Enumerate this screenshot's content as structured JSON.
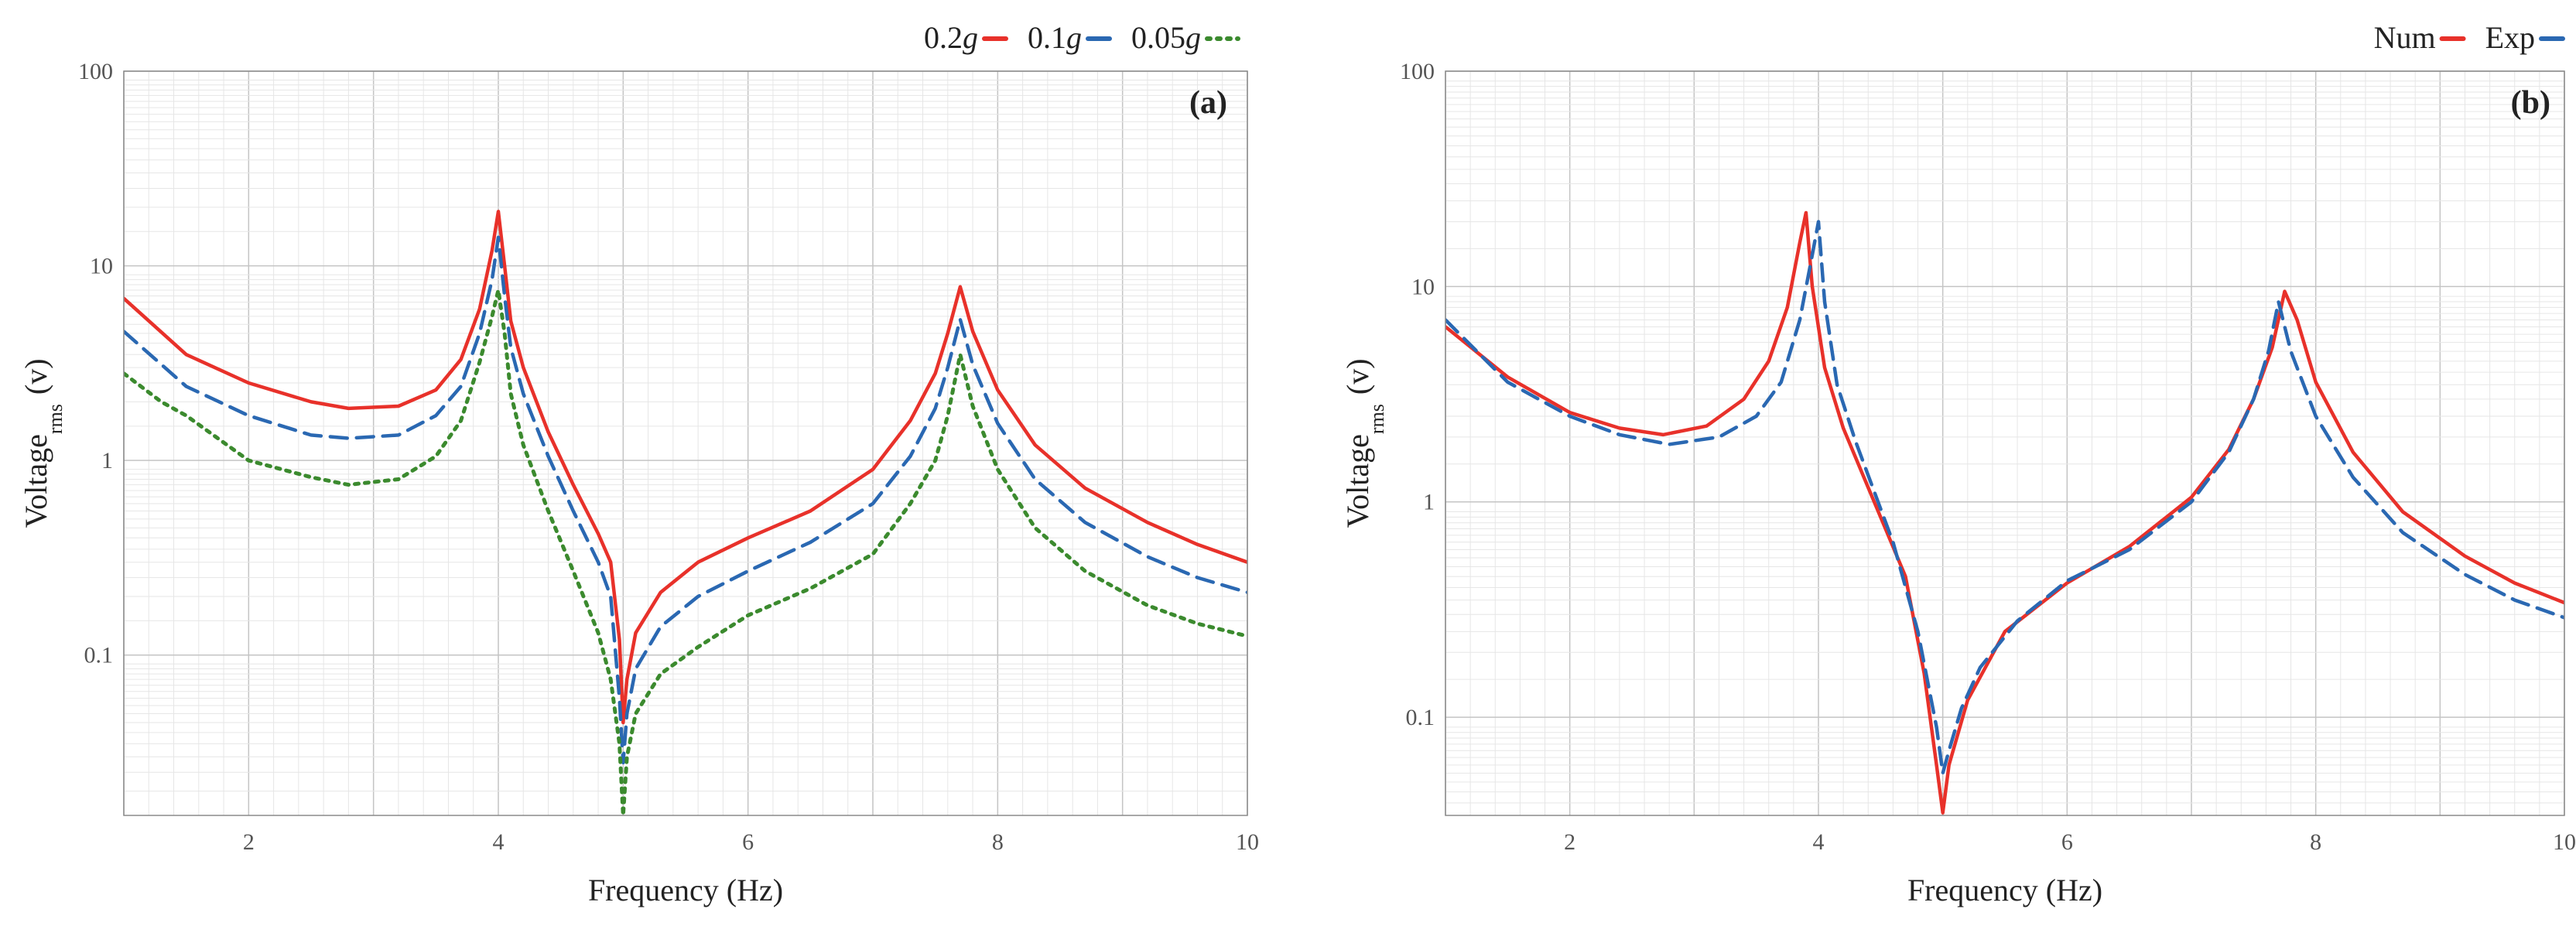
{
  "colors": {
    "num": "#e8312a",
    "exp": "#2a68b2",
    "low": "#3b8a2e",
    "grid_major": "#c4c4c4",
    "grid_minor": "#e6e6e6",
    "frame": "#8a8a8a"
  },
  "chart_data": [
    {
      "type": "line",
      "panel_label": "(a)",
      "xlabel": "Frequency (Hz)",
      "ylabel_main": "Voltage",
      "ylabel_sub": "rms",
      "ylabel_unit": "(v)",
      "yscale": "log",
      "xlim": [
        1,
        10
      ],
      "ylim": [
        0.015,
        100
      ],
      "x_ticks": [
        "2",
        "4",
        "6",
        "8",
        "10"
      ],
      "x_tick_values": [
        2,
        4,
        6,
        8,
        10
      ],
      "y_ticks": [
        "0.1",
        "1",
        "10",
        "100"
      ],
      "y_tick_values": [
        0.1,
        1,
        10,
        100
      ],
      "legend": [
        {
          "name": "0.2",
          "unit": "g",
          "style": "solid",
          "color_key": "num"
        },
        {
          "name": "0.1",
          "unit": "g",
          "style": "dashed",
          "color_key": "exp"
        },
        {
          "name": "0.05",
          "unit": "g",
          "style": "dotted",
          "color_key": "low"
        }
      ],
      "series": [
        {
          "name": "0.2g",
          "style": "solid",
          "color_key": "num",
          "x": [
            1.0,
            1.5,
            2.0,
            2.5,
            2.8,
            3.2,
            3.5,
            3.7,
            3.85,
            3.95,
            4.0,
            4.05,
            4.1,
            4.2,
            4.4,
            4.6,
            4.8,
            4.9,
            4.97,
            5.0,
            5.03,
            5.1,
            5.3,
            5.6,
            6.0,
            6.5,
            7.0,
            7.3,
            7.5,
            7.6,
            7.7,
            7.8,
            8.0,
            8.3,
            8.7,
            9.2,
            9.6,
            10.0
          ],
          "y": [
            6.8,
            3.5,
            2.5,
            2.0,
            1.85,
            1.9,
            2.3,
            3.3,
            6.0,
            12,
            19,
            10,
            5.2,
            3.0,
            1.4,
            0.75,
            0.42,
            0.3,
            0.12,
            0.045,
            0.075,
            0.13,
            0.21,
            0.3,
            0.4,
            0.55,
            0.9,
            1.6,
            2.8,
            4.5,
            7.8,
            4.6,
            2.3,
            1.2,
            0.72,
            0.48,
            0.37,
            0.3
          ]
        },
        {
          "name": "0.1g",
          "style": "dashed",
          "color_key": "exp",
          "x": [
            1.0,
            1.5,
            2.0,
            2.5,
            2.8,
            3.2,
            3.5,
            3.7,
            3.85,
            3.95,
            4.0,
            4.05,
            4.1,
            4.2,
            4.4,
            4.6,
            4.8,
            4.9,
            4.97,
            5.0,
            5.03,
            5.1,
            5.3,
            5.6,
            6.0,
            6.5,
            7.0,
            7.3,
            7.5,
            7.6,
            7.7,
            7.8,
            8.0,
            8.3,
            8.7,
            9.2,
            9.6,
            10.0
          ],
          "y": [
            4.6,
            2.4,
            1.7,
            1.35,
            1.3,
            1.35,
            1.7,
            2.4,
            4.5,
            8.5,
            14,
            7.0,
            3.8,
            2.2,
            1.05,
            0.55,
            0.3,
            0.2,
            0.06,
            0.028,
            0.05,
            0.085,
            0.14,
            0.2,
            0.27,
            0.38,
            0.6,
            1.05,
            1.85,
            3.0,
            5.3,
            3.1,
            1.55,
            0.8,
            0.48,
            0.32,
            0.25,
            0.21
          ]
        },
        {
          "name": "0.05g",
          "style": "dotted",
          "color_key": "low",
          "x": [
            1.0,
            1.3,
            1.5,
            2.0,
            2.5,
            2.8,
            3.2,
            3.5,
            3.7,
            3.85,
            3.95,
            4.0,
            4.05,
            4.1,
            4.2,
            4.4,
            4.6,
            4.8,
            4.9,
            4.97,
            5.0,
            5.03,
            5.1,
            5.3,
            5.6,
            6.0,
            6.5,
            7.0,
            7.3,
            7.5,
            7.6,
            7.7,
            7.8,
            8.0,
            8.3,
            8.7,
            9.2,
            9.6,
            10.0
          ],
          "y": [
            2.8,
            2.0,
            1.7,
            1.0,
            0.82,
            0.75,
            0.8,
            1.05,
            1.6,
            3.2,
            5.5,
            7.5,
            4.5,
            2.2,
            1.2,
            0.55,
            0.27,
            0.13,
            0.075,
            0.035,
            0.015,
            0.03,
            0.05,
            0.08,
            0.11,
            0.16,
            0.22,
            0.33,
            0.6,
            1.0,
            1.7,
            3.5,
            1.9,
            0.9,
            0.45,
            0.27,
            0.18,
            0.145,
            0.125
          ]
        }
      ]
    },
    {
      "type": "line",
      "panel_label": "(b)",
      "xlabel": "Frequency (Hz)",
      "ylabel_main": "Voltage",
      "ylabel_sub": "rms",
      "ylabel_unit": "(v)",
      "yscale": "log",
      "xlim": [
        1,
        10
      ],
      "ylim": [
        0.035,
        100
      ],
      "x_ticks": [
        "2",
        "4",
        "6",
        "8",
        "10"
      ],
      "x_tick_values": [
        2,
        4,
        6,
        8,
        10
      ],
      "y_ticks": [
        "0.1",
        "1",
        "10",
        "100"
      ],
      "y_tick_values": [
        0.1,
        1,
        10,
        100
      ],
      "legend": [
        {
          "name": "Num",
          "unit": "",
          "style": "solid",
          "color_key": "num"
        },
        {
          "name": "Exp",
          "unit": "",
          "style": "dashed",
          "color_key": "exp"
        }
      ],
      "series": [
        {
          "name": "Num",
          "style": "solid",
          "color_key": "num",
          "x": [
            1.0,
            1.5,
            2.0,
            2.4,
            2.75,
            3.1,
            3.4,
            3.6,
            3.75,
            3.85,
            3.9,
            3.95,
            4.05,
            4.2,
            4.5,
            4.7,
            4.85,
            4.95,
            5.0,
            5.05,
            5.2,
            5.5,
            6.0,
            6.5,
            7.0,
            7.3,
            7.5,
            7.65,
            7.75,
            7.85,
            8.0,
            8.3,
            8.7,
            9.2,
            9.6,
            10.0
          ],
          "y": [
            6.5,
            3.8,
            2.6,
            2.2,
            2.05,
            2.25,
            3.0,
            4.5,
            8.0,
            16,
            22,
            10,
            4.2,
            2.2,
            0.85,
            0.45,
            0.16,
            0.06,
            0.036,
            0.06,
            0.12,
            0.25,
            0.42,
            0.62,
            1.05,
            1.75,
            3.0,
            5.2,
            9.5,
            7.0,
            3.6,
            1.7,
            0.9,
            0.56,
            0.42,
            0.34
          ]
        },
        {
          "name": "Exp",
          "style": "dashed",
          "color_key": "exp",
          "x": [
            1.0,
            1.5,
            2.0,
            2.4,
            2.8,
            3.2,
            3.5,
            3.7,
            3.85,
            3.95,
            4.0,
            4.05,
            4.15,
            4.3,
            4.6,
            4.8,
            4.95,
            5.0,
            5.05,
            5.15,
            5.3,
            5.6,
            6.0,
            6.5,
            7.0,
            7.3,
            7.5,
            7.62,
            7.7,
            7.8,
            8.0,
            8.3,
            8.7,
            9.2,
            9.6,
            10.0
          ],
          "y": [
            7.0,
            3.6,
            2.5,
            2.05,
            1.85,
            2.0,
            2.5,
            3.6,
            7.0,
            14,
            20,
            8.5,
            3.5,
            1.9,
            0.65,
            0.25,
            0.09,
            0.055,
            0.07,
            0.11,
            0.17,
            0.28,
            0.43,
            0.6,
            1.0,
            1.7,
            3.0,
            5.0,
            8.5,
            5.0,
            2.5,
            1.3,
            0.72,
            0.46,
            0.35,
            0.29
          ]
        }
      ]
    }
  ]
}
